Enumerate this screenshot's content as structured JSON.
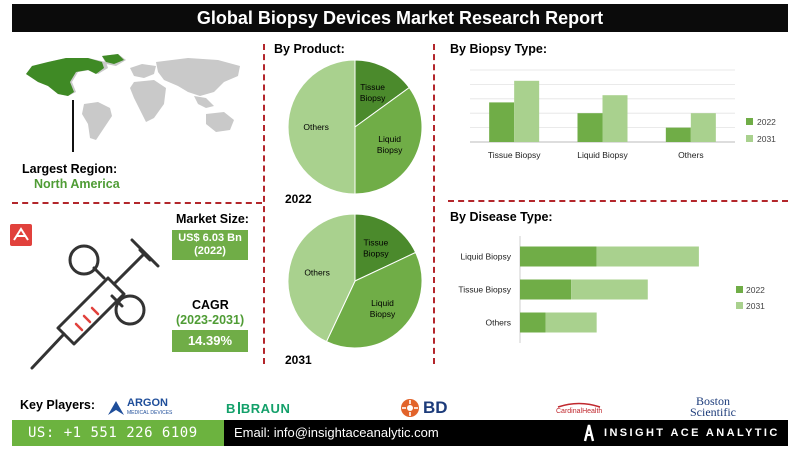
{
  "title": "Global Biopsy Devices Market Research Report",
  "region": {
    "label": "Largest Region:",
    "value": "North America"
  },
  "market_size": {
    "label": "Market Size:",
    "value": "US$ 6.03 Bn",
    "year": "(2022)"
  },
  "cagr": {
    "label": "CAGR",
    "period": "(2023-2031)",
    "value": "14.39%"
  },
  "sections": {
    "by_product": "By  Product:",
    "by_biopsy_type": "By Biopsy Type:",
    "by_disease_type": "By Disease Type:"
  },
  "key_players": {
    "title": "Key Players:",
    "argon": "ARGON",
    "argon_sub": "MEDICAL DEVICES",
    "bbraun_b": "B",
    "bbraun": "BRAUN",
    "bd": "BD",
    "cardinal": "CardinalHealth",
    "boston_1": "Boston",
    "boston_2": "Scientific"
  },
  "footer": {
    "phone": "US: +1 551 226 6109",
    "email": "Email: info@insightaceanalytic.com",
    "brand": "INSIGHT ACE ANALYTIC"
  },
  "colors": {
    "dark_green": "#4b8a2c",
    "mid_green": "#70ad47",
    "light_green": "#a9d18e",
    "accent_red": "#b3262b",
    "title_bg": "#0b0b0b"
  },
  "icons": [
    "world-map-icon",
    "ribbon-icon",
    "syringe-icon",
    "argon-logo-icon",
    "bd-logo-icon",
    "cardinal-logo-icon",
    "insightace-logo-icon"
  ],
  "chart_data": [
    {
      "type": "pie",
      "year": "2022",
      "slices": [
        {
          "label": "Tissue Biopsy",
          "display": [
            "Tissue",
            "Biopsy"
          ],
          "value": 0.15,
          "color": "#4b8a2c"
        },
        {
          "label": "Liquid Biopsy",
          "display": [
            "Liquid",
            "Biopsy"
          ],
          "value": 0.35,
          "color": "#70ad47"
        },
        {
          "label": "Others",
          "display": [
            "Others"
          ],
          "value": 0.5,
          "color": "#a9d18e"
        }
      ]
    },
    {
      "type": "pie",
      "year": "2031",
      "slices": [
        {
          "label": "Tissue Biopsy",
          "display": [
            "Tissue",
            "Biopsy"
          ],
          "value": 0.18,
          "color": "#4b8a2c"
        },
        {
          "label": "Liquid Biopsy",
          "display": [
            "Liquid",
            "Biopsy"
          ],
          "value": 0.39,
          "color": "#70ad47"
        },
        {
          "label": "Others",
          "display": [
            "Others"
          ],
          "value": 0.43,
          "color": "#a9d18e"
        }
      ]
    },
    {
      "type": "bar",
      "orientation": "vertical",
      "categories": [
        "Tissue Biopsy",
        "Liquid Biopsy",
        "Others"
      ],
      "series": [
        {
          "name": "2022",
          "values": [
            55,
            40,
            20
          ],
          "color": "#70ad47"
        },
        {
          "name": "2031",
          "values": [
            85,
            65,
            40
          ],
          "color": "#a9d18e"
        }
      ],
      "ylim": [
        0,
        100
      ],
      "grid": true,
      "legend": "right"
    },
    {
      "type": "bar",
      "orientation": "horizontal",
      "stacked": true,
      "categories": [
        "Liquid Biopsy",
        "Tissue Biopsy",
        "Others"
      ],
      "series": [
        {
          "name": "2022",
          "values": [
            60,
            40,
            20
          ],
          "color": "#70ad47"
        },
        {
          "name": "2031",
          "values": [
            80,
            60,
            40
          ],
          "color": "#a9d18e"
        }
      ],
      "xlim": [
        0,
        180
      ],
      "legend": "right"
    }
  ]
}
